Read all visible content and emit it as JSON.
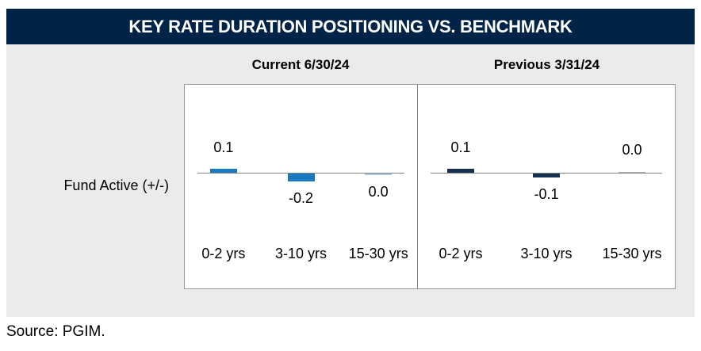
{
  "chart_data": {
    "type": "bar",
    "title": "KEY RATE DURATION POSITIONING VS. BENCHMARK",
    "row_label": "Fund Active (+/-)",
    "categories": [
      "0-2 yrs",
      "3-10 yrs",
      "15-30 yrs"
    ],
    "ylim": [
      -0.3,
      0.3
    ],
    "grid": false,
    "legend": "none",
    "panels": [
      {
        "label": "Current 6/30/24",
        "values": [
          0.1,
          -0.2,
          0
        ],
        "value_labels": [
          "0.1",
          "-0.2",
          "0.0"
        ],
        "label_sides": [
          "above",
          "below",
          "below"
        ],
        "bar_color": "#187bc0",
        "zero_bar_color": "#aec8e0"
      },
      {
        "label": "Previous 3/31/24",
        "values": [
          0.1,
          -0.1,
          0
        ],
        "value_labels": [
          "0.1",
          "-0.1",
          "0.0"
        ],
        "label_sides": [
          "above",
          "below",
          "above"
        ],
        "bar_color": "#16304f",
        "zero_bar_color": "#a9b2b8"
      }
    ],
    "source": "Source: PGIM."
  },
  "source_note": "Source: PGIM.",
  "colors": {
    "header_bg": "#002348",
    "header_text": "#ffffff",
    "panel_bg": "#ebebeb",
    "box_border": "#999999",
    "axis_line": "#808080",
    "text": "#000000"
  }
}
